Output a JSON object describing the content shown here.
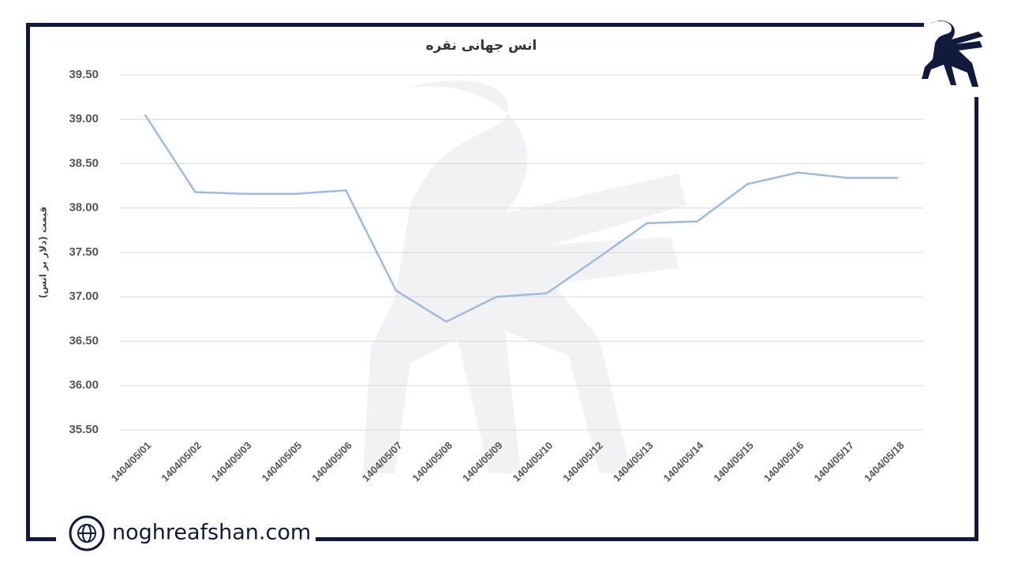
{
  "chart_data": {
    "type": "line",
    "title": "انس جهانی نقره",
    "y_label": "قیمت (دلار بر انس)",
    "categories": [
      "1404/05/01",
      "1404/05/02",
      "1404/05/03",
      "1404/05/05",
      "1404/05/06",
      "1404/05/07",
      "1404/05/08",
      "1404/05/09",
      "1404/05/10",
      "1404/05/12",
      "1404/05/13",
      "1404/05/14",
      "1404/05/15",
      "1404/05/16",
      "1404/05/17",
      "1404/05/18"
    ],
    "values": [
      39.05,
      38.18,
      38.16,
      38.16,
      38.2,
      37.07,
      36.72,
      37.0,
      37.04,
      37.43,
      37.83,
      37.85,
      38.27,
      38.4,
      38.34,
      38.34
    ],
    "color": "#9dbbe1",
    "ylim": [
      35.5,
      39.5
    ],
    "yticks": [
      {
        "value": 35.5,
        "label": "35.50"
      },
      {
        "value": 36,
        "label": "36.00"
      },
      {
        "value": 36.5,
        "label": "36.50"
      },
      {
        "value": 37,
        "label": "37.00"
      },
      {
        "value": 37.5,
        "label": "37.50"
      },
      {
        "value": 38,
        "label": "38.00"
      },
      {
        "value": 38.5,
        "label": "38.50"
      },
      {
        "value": 39,
        "label": "39.00"
      },
      {
        "value": 39.5,
        "label": "39.50"
      }
    ],
    "grid": true
  },
  "brand": {
    "website": "noghreafshan.com"
  }
}
